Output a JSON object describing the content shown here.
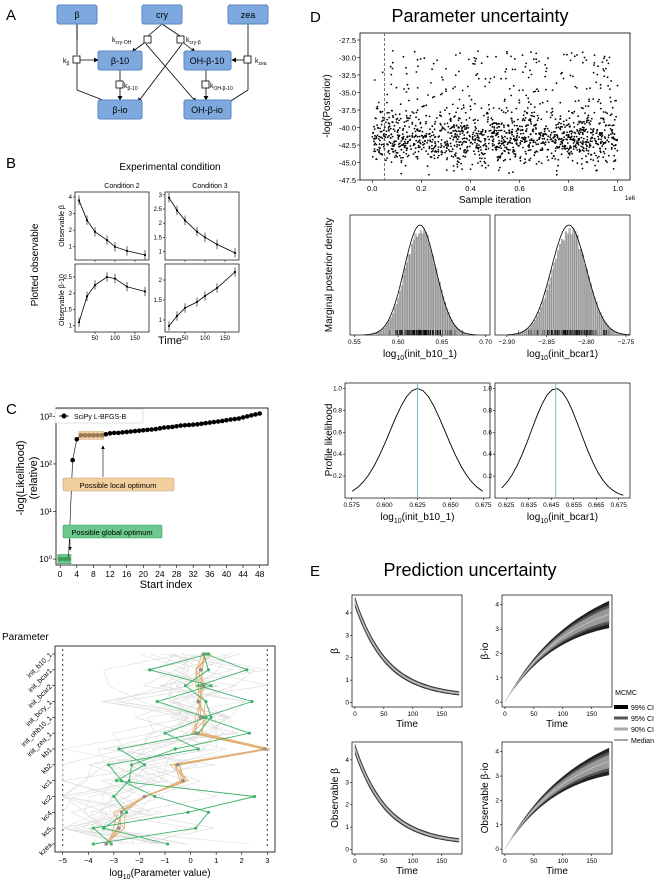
{
  "panel_labels": {
    "A": "A",
    "B": "B",
    "C": "C",
    "D": "D",
    "E": "E"
  },
  "panelA": {
    "nodes": {
      "beta": "β",
      "cry": "cry",
      "zea": "zea",
      "b10": "β-10",
      "ohb10": "OH-β-10",
      "bio": "β-io",
      "ohbio": "OH-β-io"
    },
    "rates": {
      "kb": "k",
      "kb_sub": "β",
      "kcryoh": "k",
      "kcryoh_sub": "cry-OH",
      "kcryb": "k",
      "kcryb_sub": "cry-β",
      "kzea": "k",
      "kzea_sub": "zea",
      "kb10": "k",
      "kb10_sub": "β-10",
      "kohb10": "k",
      "kohb10_sub": "OH-β-10"
    },
    "colors": {
      "node_fill": "#7ea9de",
      "node_stroke": "#5a87c0"
    }
  },
  "panelB": {
    "title": "Experimental condition",
    "ylabel": "Plotted observable",
    "xlabel": "Time",
    "cond2": "Condition 2",
    "cond3": "Condition 3",
    "row1_ylabel": "Observable β",
    "row2_ylabel": "Observable β-10"
  },
  "panelC": {
    "legend": "SciPy L-BFGS-B",
    "ylabel": "-log(Likelihood)",
    "ylabel2": "(relative)",
    "xlabel": "Start index",
    "local_label": "Possible local optimum",
    "global_label": "Possible global optimum",
    "local_color": "#f2cf9f",
    "global_color": "#6cc98c",
    "param_title": "Parameter",
    "param_xlabel": "log",
    "param_xlabel_sub": "10",
    "param_xlabel_rest": "(Parameter value)",
    "param_names": [
      "init_b10_1",
      "init_bcar1",
      "init_bcar2",
      "init_bcry_1",
      "init_ohb10_1",
      "init_zea_1",
      "kb1",
      "kb2",
      "kc1",
      "kc2",
      "kc4",
      "kc5",
      "kzea"
    ]
  },
  "chart_data": [
    {
      "id": "C-waterfall",
      "type": "scatter",
      "title": "",
      "xlabel": "Start index",
      "ylabel": "-log(Likelihood) (relative)",
      "yscale": "log",
      "ylim": [
        0.75,
        1500
      ],
      "xlim": [
        -1,
        50
      ],
      "xticks": [
        0,
        4,
        8,
        12,
        16,
        20,
        24,
        28,
        32,
        36,
        40,
        44,
        48
      ],
      "yticks_labels": [
        "10⁰",
        "10¹",
        "10²",
        "10³"
      ],
      "x": [
        0,
        1,
        2,
        3,
        4,
        5,
        6,
        7,
        8,
        9,
        10,
        11,
        12,
        13,
        14,
        15,
        16,
        17,
        18,
        19,
        20,
        21,
        22,
        23,
        24,
        25,
        26,
        27,
        28,
        29,
        30,
        31,
        32,
        33,
        34,
        35,
        36,
        37,
        38,
        39,
        40,
        41,
        42,
        43,
        44,
        45,
        46,
        47,
        48
      ],
      "values": [
        1,
        1,
        1,
        120,
        330,
        400,
        400,
        400,
        400,
        400,
        400,
        420,
        440,
        450,
        450,
        460,
        470,
        480,
        490,
        500,
        510,
        520,
        530,
        540,
        560,
        580,
        590,
        600,
        620,
        640,
        650,
        660,
        670,
        680,
        700,
        720,
        740,
        760,
        780,
        800,
        830,
        860,
        880,
        900,
        950,
        1000,
        1050,
        1100,
        1150
      ]
    },
    {
      "id": "D-trace",
      "type": "scatter",
      "title": "Parameter uncertainty",
      "xlabel": "Sample iteration",
      "ylabel": "-log(Posterior)",
      "xlim": [
        -0.05,
        1.05
      ],
      "ylim": [
        -47.5,
        -26.5
      ],
      "xticks": [
        0.0,
        0.2,
        0.4,
        0.6,
        0.8,
        1.0
      ],
      "xtick_labels": [
        "0.0",
        "0.2",
        "0.4",
        "0.6",
        "0.8",
        "1.0"
      ],
      "yticks": [
        -47.5,
        -45.0,
        -42.5,
        -40.0,
        -37.5,
        -35.0,
        -32.5,
        -30.0,
        -27.5
      ],
      "ytick_labels": [
        "-47.5",
        "-45.0",
        "-42.5",
        "-40.0",
        "-37.5",
        "-35.0",
        "-32.5",
        "-30.0",
        "-27.5"
      ],
      "x_multiplier": "1e6",
      "burn_in": 0.05
    },
    {
      "id": "D-hist",
      "type": "bar",
      "ylabel": "Marginal posterior density",
      "panels": [
        {
          "xlabel": "log",
          "xsub": "10",
          "xrest": "(init_b10_1)",
          "xlim": [
            0.545,
            0.705
          ],
          "xticks": [
            0.55,
            0.6,
            0.65,
            0.7
          ],
          "xtick_labels": [
            "0.55",
            "0.60",
            "0.65",
            "0.70"
          ],
          "mean": 0.625,
          "sd": 0.018
        },
        {
          "xlabel": "log",
          "xsub": "10",
          "xrest": "(init_bcar1)",
          "xlim": [
            -2.915,
            -2.745
          ],
          "xticks": [
            -2.9,
            -2.85,
            -2.8,
            -2.75
          ],
          "xtick_labels": [
            "−2.90",
            "−2.85",
            "−2.80",
            "−2.75"
          ],
          "mean": -2.822,
          "sd": 0.022
        }
      ]
    },
    {
      "id": "D-profile",
      "type": "line",
      "ylabel": "Profile likelihood",
      "ylim": [
        0,
        1.05
      ],
      "yticks": [
        0.2,
        0.4,
        0.6,
        0.8,
        1.0
      ],
      "ytick_labels": [
        "0.2",
        "0.4",
        "0.6",
        "0.8",
        "1.0"
      ],
      "panels": [
        {
          "xlabel": "log",
          "xsub": "10",
          "xrest": "(init_b10_1)",
          "xlim": [
            0.57,
            0.68
          ],
          "xticks": [
            0.575,
            0.6,
            0.625,
            0.65,
            0.675
          ],
          "xtick_labels": [
            "0.575",
            "0.600",
            "0.625",
            "0.650",
            "0.675"
          ],
          "opt": 0.625,
          "sd": 0.021
        },
        {
          "xlabel": "log",
          "xsub": "10",
          "xrest": "(init_bcar1)",
          "xlim": [
            0.62,
            0.68
          ],
          "xticks": [
            0.625,
            0.635,
            0.645,
            0.655,
            0.665,
            0.675
          ],
          "xtick_labels": [
            "0.625",
            "0.635",
            "0.645",
            "0.655",
            "0.665",
            "0.675"
          ],
          "opt": 0.647,
          "sd": 0.011
        }
      ]
    },
    {
      "id": "E-prediction",
      "type": "area",
      "title": "Prediction uncertainty",
      "legend_title": "MCMC",
      "legend": [
        "99% CI",
        "95% CI",
        "90% CI",
        "Median"
      ],
      "panels": [
        {
          "ylabel": "β",
          "xlabel": "Time",
          "xticks": [
            0,
            50,
            100,
            150
          ],
          "yticks": [
            0,
            1,
            2,
            3,
            4
          ],
          "ylim": [
            -0.2,
            4.8
          ],
          "shape": "decay",
          "start": 4.5,
          "end": 0.25
        },
        {
          "ylabel": "β-io",
          "xlabel": "Time",
          "xticks": [
            0,
            50,
            100,
            150
          ],
          "yticks": [
            0,
            1,
            2,
            3,
            4
          ],
          "ylim": [
            -0.2,
            4.4
          ],
          "shape": "rise",
          "start": 0,
          "end": 3.6
        },
        {
          "ylabel": "Observable β",
          "xlabel": "Time",
          "xticks": [
            0,
            50,
            100,
            150
          ],
          "yticks": [
            0,
            1,
            2,
            3,
            4
          ],
          "ylim": [
            -0.2,
            4.8
          ],
          "shape": "decay",
          "start": 4.5,
          "end": 0.25
        },
        {
          "ylabel": "Observable β-io",
          "xlabel": "Time",
          "xticks": [
            0,
            50,
            100,
            150
          ],
          "yticks": [
            0,
            1,
            2,
            3,
            4
          ],
          "ylim": [
            -0.2,
            4.4
          ],
          "shape": "rise",
          "start": 0,
          "end": 3.6
        }
      ]
    },
    {
      "id": "B-data",
      "type": "line",
      "panels": [
        {
          "xticks": [
            50,
            100,
            150
          ],
          "yticks": [
            1,
            2,
            3,
            4
          ],
          "ylim": [
            0.2,
            4.3
          ],
          "x": [
            10,
            30,
            50,
            80,
            100,
            130,
            175
          ],
          "values": [
            3.8,
            2.6,
            1.9,
            1.4,
            1.0,
            0.75,
            0.5
          ]
        },
        {
          "xticks": [
            50,
            100,
            150
          ],
          "yticks": [
            1.0,
            1.5,
            2.0,
            2.5,
            3.0
          ],
          "ylim": [
            0.7,
            3.1
          ],
          "x": [
            10,
            30,
            50,
            80,
            100,
            130,
            175
          ],
          "values": [
            2.9,
            2.45,
            2.1,
            1.7,
            1.5,
            1.25,
            0.95
          ]
        },
        {
          "xticks": [
            50,
            100,
            150
          ],
          "yticks": [
            1.0,
            1.5,
            2.0,
            2.5
          ],
          "ylim": [
            0.8,
            2.9
          ],
          "x": [
            10,
            30,
            50,
            80,
            100,
            130,
            175
          ],
          "values": [
            1.1,
            1.9,
            2.25,
            2.5,
            2.45,
            2.2,
            2.05
          ]
        },
        {
          "xticks": [
            50,
            100,
            150
          ],
          "yticks": [
            1.0,
            1.5,
            2.0
          ],
          "ylim": [
            0.7,
            2.4
          ],
          "x": [
            10,
            30,
            50,
            80,
            100,
            130,
            175
          ],
          "values": [
            0.85,
            1.1,
            1.3,
            1.45,
            1.6,
            1.8,
            2.2
          ]
        }
      ]
    }
  ]
}
